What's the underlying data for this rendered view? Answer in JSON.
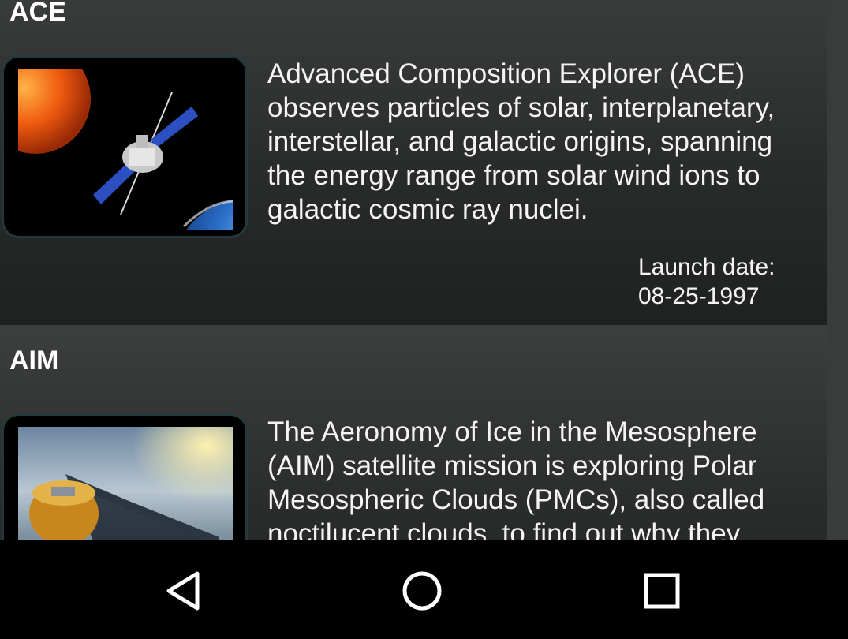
{
  "missions": [
    {
      "name": "ACE",
      "description": "Advanced Composition Explorer (ACE) observes particles of solar, interplanetary, interstellar, and galactic origins, spanning the energy range from solar wind ions to galactic cosmic ray nuclei.",
      "launch_label": "Launch date:",
      "launch_date": "08-25-1997"
    },
    {
      "name": "AIM",
      "description": "The Aeronomy of Ice in the Mesosphere (AIM) satellite mission is exploring Polar Mesospheric Clouds (PMCs), also called noctilucent clouds, to find out why they"
    }
  ],
  "navbar": {
    "back_icon": "back-triangle-icon",
    "home_icon": "home-circle-icon",
    "recents_icon": "recents-square-icon"
  },
  "colors": {
    "background": "#2f3131",
    "navbar": "#000000",
    "text": "#f4f4f4",
    "thumb_border": "#25393a"
  }
}
